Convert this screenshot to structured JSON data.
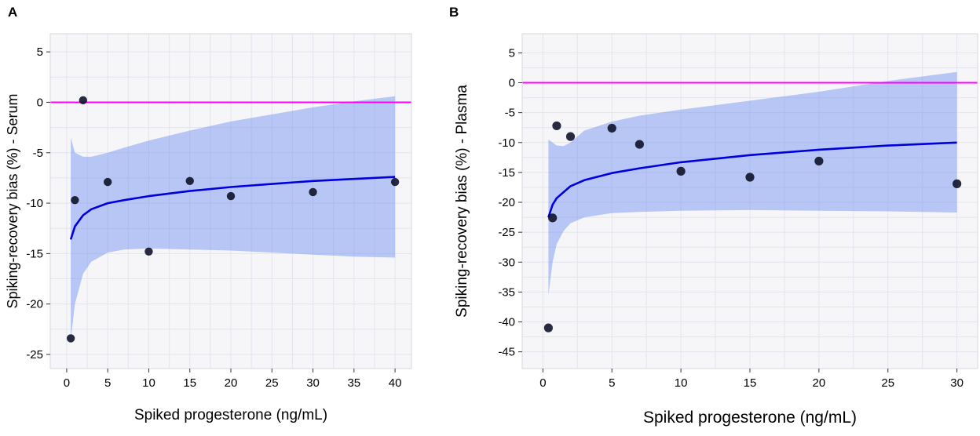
{
  "chart_data": [
    {
      "panel": "A",
      "type": "scatter",
      "xlabel": "Spiked progesterone (ng/mL)",
      "ylabel": "Spiking-recovery bias (%) - Serum",
      "xlim": [
        -2,
        42
      ],
      "ylim": [
        -26.4,
        6.8
      ],
      "xticks": [
        0,
        5,
        10,
        15,
        20,
        25,
        30,
        35,
        40
      ],
      "yticks": [
        5,
        0,
        -5,
        -10,
        -15,
        -20,
        -25
      ],
      "reference_line": {
        "y": 0,
        "color": "#ff00ff"
      },
      "points": [
        {
          "x": 0.5,
          "y": -23.4
        },
        {
          "x": 1,
          "y": -9.7
        },
        {
          "x": 2,
          "y": 0.2
        },
        {
          "x": 5,
          "y": -7.9
        },
        {
          "x": 10,
          "y": -14.8
        },
        {
          "x": 15,
          "y": -7.8
        },
        {
          "x": 20,
          "y": -9.3
        },
        {
          "x": 30,
          "y": -8.9
        },
        {
          "x": 40,
          "y": -7.9
        }
      ],
      "fit_line": {
        "color": "#0000dd",
        "x": [
          0.5,
          1,
          2,
          3,
          5,
          7,
          10,
          15,
          20,
          25,
          30,
          35,
          40
        ],
        "y": [
          -13.6,
          -12.3,
          -11.2,
          -10.6,
          -10.0,
          -9.7,
          -9.3,
          -8.8,
          -8.4,
          -8.1,
          -7.8,
          -7.6,
          -7.4
        ]
      },
      "ci_band": {
        "color": "#6b8cf0",
        "x": [
          0.5,
          1,
          2,
          3,
          5,
          7,
          10,
          15,
          20,
          25,
          30,
          35,
          40
        ],
        "upper": [
          -3.5,
          -5.0,
          -5.4,
          -5.4,
          -5.0,
          -4.5,
          -3.8,
          -2.8,
          -1.9,
          -1.2,
          -0.5,
          0.1,
          0.6
        ],
        "lower": [
          -23.5,
          -20.0,
          -17.0,
          -15.8,
          -14.9,
          -14.6,
          -14.5,
          -14.6,
          -14.7,
          -14.9,
          -15.1,
          -15.3,
          -15.4
        ]
      }
    },
    {
      "panel": "B",
      "type": "scatter",
      "xlabel": "Spiked progesterone (ng/mL)",
      "ylabel": "Spiking-recovery bias (%) - Plasma",
      "xlim": [
        -1.5,
        31.5
      ],
      "ylim": [
        -47.8,
        8.2
      ],
      "xticks": [
        0,
        5,
        10,
        15,
        20,
        25,
        30
      ],
      "yticks": [
        5,
        0,
        -5,
        -10,
        -15,
        -20,
        -25,
        -30,
        -35,
        -40,
        -45
      ],
      "reference_line": {
        "y": 0,
        "color": "#ff00ff"
      },
      "points": [
        {
          "x": 0.4,
          "y": -41.0
        },
        {
          "x": 0.7,
          "y": -22.6
        },
        {
          "x": 1,
          "y": -7.2
        },
        {
          "x": 2,
          "y": -9.0
        },
        {
          "x": 5,
          "y": -7.6
        },
        {
          "x": 7,
          "y": -10.3
        },
        {
          "x": 10,
          "y": -14.8
        },
        {
          "x": 15,
          "y": -15.8
        },
        {
          "x": 20,
          "y": -13.1
        },
        {
          "x": 30,
          "y": -16.9
        }
      ],
      "fit_line": {
        "color": "#0000dd",
        "x": [
          0.4,
          0.7,
          1,
          2,
          3,
          5,
          7,
          10,
          15,
          20,
          25,
          30
        ],
        "y": [
          -22.5,
          -20.4,
          -19.3,
          -17.3,
          -16.3,
          -15.1,
          -14.3,
          -13.3,
          -12.1,
          -11.2,
          -10.5,
          -10.0
        ]
      },
      "ci_band": {
        "color": "#6b8cf0",
        "x": [
          0.4,
          0.7,
          1,
          1.5,
          2,
          3,
          5,
          7,
          10,
          15,
          20,
          25,
          30
        ],
        "upper": [
          -9.5,
          -10.0,
          -10.5,
          -10.6,
          -10.0,
          -8.0,
          -6.5,
          -5.5,
          -4.5,
          -3.0,
          -1.5,
          0.3,
          1.8
        ],
        "lower": [
          -35.5,
          -30.0,
          -27.0,
          -24.8,
          -23.5,
          -22.5,
          -21.8,
          -21.6,
          -21.4,
          -21.3,
          -21.4,
          -21.5,
          -21.7
        ]
      }
    }
  ]
}
